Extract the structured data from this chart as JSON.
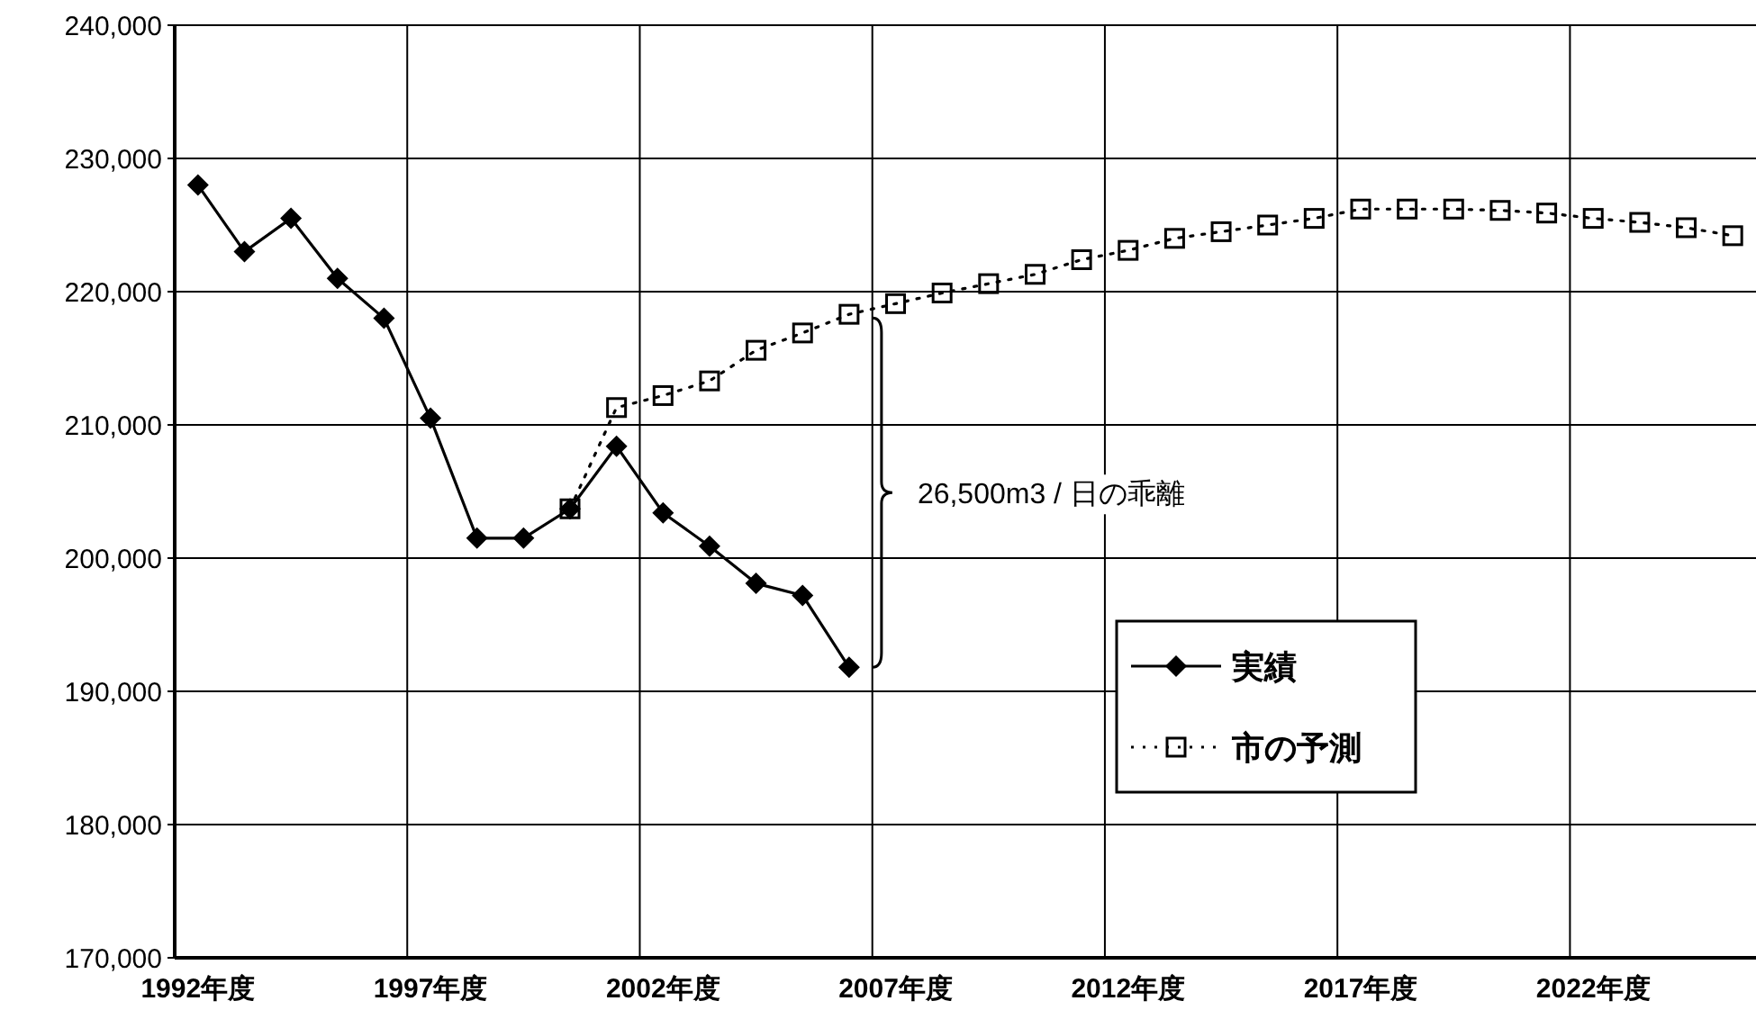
{
  "chart_data": {
    "type": "line",
    "categories": [
      "1992年度",
      null,
      null,
      null,
      null,
      "1997年度",
      null,
      null,
      null,
      null,
      "2002年度",
      null,
      null,
      null,
      null,
      "2007年度",
      null,
      null,
      null,
      null,
      "2012年度",
      null,
      null,
      null,
      null,
      "2017年度",
      null,
      null,
      null,
      null,
      "2022年度",
      null,
      null,
      null
    ],
    "series": [
      {
        "name": "実績",
        "color": "#000000",
        "marker": "diamond",
        "line_style": "solid",
        "values": [
          228000,
          223000,
          225500,
          221000,
          218000,
          210500,
          201500,
          201500,
          203700,
          208400,
          203400,
          200900,
          198100,
          197200,
          191800,
          null,
          null,
          null,
          null,
          null,
          null,
          null,
          null,
          null,
          null,
          null,
          null,
          null,
          null,
          null,
          null,
          null,
          null,
          null
        ]
      },
      {
        "name": "市の予測",
        "color": "#000000",
        "marker": "square",
        "line_style": "dotted",
        "values": [
          null,
          null,
          null,
          null,
          null,
          null,
          null,
          null,
          203700,
          211300,
          212200,
          213300,
          215600,
          216900,
          218300,
          219100,
          219900,
          220600,
          221300,
          222400,
          223100,
          224000,
          224500,
          225000,
          225500,
          226200,
          226200,
          226200,
          226100,
          225900,
          225500,
          225200,
          224800,
          224200
        ]
      }
    ],
    "ylim": [
      170000,
      240000
    ],
    "yticks": [
      {
        "value": 170000,
        "label": "170,000"
      },
      {
        "value": 180000,
        "label": "180,000"
      },
      {
        "value": 190000,
        "label": "190,000"
      },
      {
        "value": 200000,
        "label": "200,000"
      },
      {
        "value": 210000,
        "label": "210,000"
      },
      {
        "value": 220000,
        "label": "220,000"
      },
      {
        "value": 230000,
        "label": "230,000"
      },
      {
        "value": 240000,
        "label": "240,000"
      }
    ],
    "grid": true,
    "legend": "right",
    "annotations": [
      "26,500m3 / 日の乖離"
    ]
  }
}
